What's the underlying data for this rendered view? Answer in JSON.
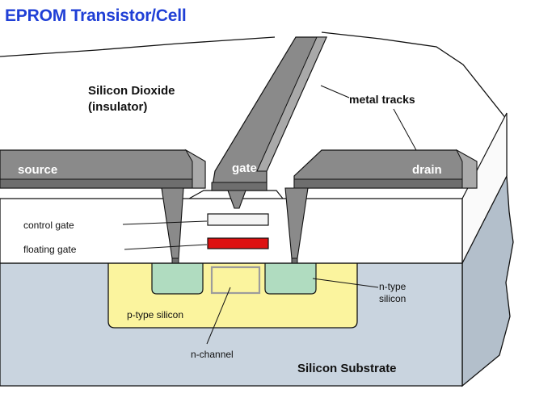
{
  "title": "EPROM Transistor/Cell",
  "labels": {
    "silicon_dioxide": "Silicon Dioxide",
    "insulator": "(insulator)",
    "metal_tracks": "metal tracks",
    "source": "source",
    "gate": "gate",
    "drain": "drain",
    "control_gate": "control gate",
    "floating_gate": "floating gate",
    "n_type": "n-type",
    "silicon": "silicon",
    "p_type_silicon": "p-type silicon",
    "n_channel": "n-channel",
    "silicon_substrate": "Silicon Substrate"
  },
  "colors": {
    "title": "#1f3fd6",
    "oxide": "#ffffff",
    "substrate": "#c9d4df",
    "substrate_side": "#b3bfcb",
    "p_type": "#fbf49e",
    "n_type": "#b0dcc0",
    "metal_top": "#8a8a8a",
    "metal_front": "#6e6e6e",
    "metal_bevel": "#a9a9a9",
    "floating_gate": "#dd1111",
    "control_gate": "#f4f4f4",
    "n_channel_box": "#9c9c9c"
  }
}
